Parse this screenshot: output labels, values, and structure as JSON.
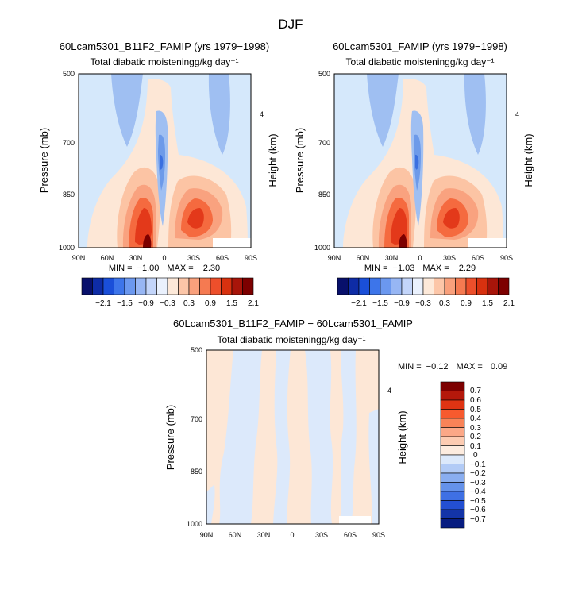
{
  "figure_title": "DJF",
  "chart_data": [
    {
      "id": "p1",
      "type": "heatmap",
      "title": "60Lcam5301_B11F2_FAMIP (yrs 1979−1998)",
      "subtitle": "Total diabatic moistening",
      "units": "g/kg day⁻¹",
      "ylabel": "Pressure (mb)",
      "ylabel_right": "Height (km)",
      "x_ticks": [
        "90N",
        "60N",
        "30N",
        "0",
        "30S",
        "60S",
        "90S"
      ],
      "y_ticks": [
        "500",
        "700",
        "850",
        "1000"
      ],
      "y_ticks_right": [
        "4"
      ],
      "min_label": "MIN =",
      "min_value": "−1.00",
      "max_label": "MAX =",
      "max_value": "2.30",
      "colorbar_labels": [
        "−2.1",
        "−1.5",
        "−0.9",
        "−0.3",
        "0.3",
        "0.9",
        "1.5",
        "2.1"
      ]
    },
    {
      "id": "p2",
      "type": "heatmap",
      "title": "60Lcam5301_FAMIP (yrs 1979−1998)",
      "subtitle": "Total diabatic moistening",
      "units": "g/kg day⁻¹",
      "ylabel": "Pressure (mb)",
      "ylabel_right": "Height (km)",
      "x_ticks": [
        "90N",
        "60N",
        "30N",
        "0",
        "30S",
        "60S",
        "90S"
      ],
      "y_ticks": [
        "500",
        "700",
        "850",
        "1000"
      ],
      "y_ticks_right": [
        "4"
      ],
      "min_label": "MIN =",
      "min_value": "−1.03",
      "max_label": "MAX =",
      "max_value": "2.29",
      "colorbar_labels": [
        "−2.1",
        "−1.5",
        "−0.9",
        "−0.3",
        "0.3",
        "0.9",
        "1.5",
        "2.1"
      ]
    },
    {
      "id": "p3",
      "type": "heatmap",
      "title": "60Lcam5301_B11F2_FAMIP − 60Lcam5301_FAMIP",
      "subtitle": "Total diabatic moistening",
      "units": "g/kg day⁻¹",
      "ylabel": "Pressure (mb)",
      "ylabel_right": "Height (km)",
      "x_ticks": [
        "90N",
        "60N",
        "30N",
        "0",
        "30S",
        "60S",
        "90S"
      ],
      "y_ticks": [
        "500",
        "700",
        "850",
        "1000"
      ],
      "y_ticks_right": [
        "4"
      ],
      "min_label": "MIN =",
      "min_value": "−0.12",
      "max_label": "MAX =",
      "max_value": "0.09",
      "colorbar_labels": [
        "0.7",
        "0.6",
        "0.5",
        "0.4",
        "0.3",
        "0.2",
        "0.1",
        "0",
        "−0.1",
        "−0.2",
        "−0.3",
        "−0.4",
        "−0.5",
        "−0.6",
        "−0.7"
      ]
    }
  ],
  "colors": {
    "bg_light_blue": "#d5e8fb",
    "light_peach": "#fde7d6",
    "peach": "#fcc4a4",
    "salmon": "#f9a27f",
    "orange_red": "#f56a3f",
    "red": "#e3391a",
    "dark_red": "#b81d0e",
    "maroon": "#7d0000",
    "blue_mid": "#9fbff2",
    "blue_dark": "#6d9ae9",
    "blue_deep": "#3a6fe0",
    "main_colorbar": [
      "#08106b",
      "#0e2ca6",
      "#1a4fd9",
      "#3d75ea",
      "#6b98ef",
      "#97b6f4",
      "#c3d5fa",
      "#eaf1fd",
      "#fde9d9",
      "#fcc6a8",
      "#f9a07c",
      "#f57a51",
      "#ed4f2b",
      "#d8310f",
      "#a8150a",
      "#7d0000"
    ],
    "diff_colorbar": [
      "#7d0000",
      "#b4180b",
      "#df3413",
      "#f75a2e",
      "#f98358",
      "#fca887",
      "#fdccb2",
      "#fdecdf",
      "#dce9fb",
      "#b2cbf6",
      "#8aaef0",
      "#6592ea",
      "#3f70e4",
      "#234fd2",
      "#1334a8",
      "#071c80"
    ]
  }
}
